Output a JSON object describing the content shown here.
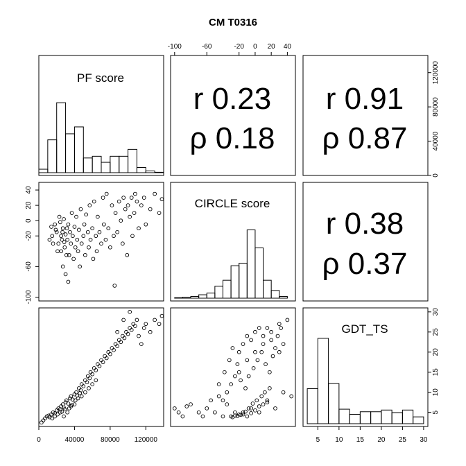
{
  "chart_data": {
    "type": "scatter",
    "title": "CM T0316",
    "variables": [
      "PF score",
      "CIRCLE score",
      "GDT_TS"
    ],
    "axis_ticks": {
      "pf": [
        "0",
        "40000",
        "80000",
        "120000"
      ],
      "circle": [
        "-100",
        "-60",
        "-20",
        "0",
        "20",
        "40"
      ],
      "gdt": [
        "5",
        "10",
        "15",
        "20",
        "25",
        "30"
      ]
    },
    "axis_ranges": {
      "pf": [
        0,
        140000
      ],
      "circle": [
        -105,
        50
      ],
      "gdt": [
        1.5,
        31
      ]
    },
    "correlations": [
      {
        "pair": "PF score vs CIRCLE score",
        "r_text": "r 0.23",
        "rho_text": "ρ 0.18"
      },
      {
        "pair": "PF score vs GDT_TS",
        "r_text": "r 0.91",
        "rho_text": "ρ 0.87"
      },
      {
        "pair": "CIRCLE score vs GDT_TS",
        "r_text": "r 0.38",
        "rho_text": "ρ 0.37"
      }
    ],
    "histograms": {
      "pf": {
        "breaks": [
          0,
          10000,
          20000,
          30000,
          40000,
          50000,
          60000,
          70000,
          80000,
          90000,
          100000,
          110000,
          120000,
          130000,
          140000
        ],
        "relative_heights": [
          0.04,
          0.38,
          0.81,
          0.45,
          0.53,
          0.17,
          0.19,
          0.12,
          0.19,
          0.19,
          0.27,
          0.06,
          0.02,
          0.005
        ]
      },
      "circle": {
        "breaks": [
          -100,
          -90,
          -80,
          -70,
          -60,
          -50,
          -40,
          -30,
          -20,
          -10,
          0,
          10,
          20,
          30,
          40
        ],
        "relative_heights": [
          0.006,
          0.012,
          0.02,
          0.04,
          0.06,
          0.14,
          0.21,
          0.38,
          0.41,
          0.8,
          0.59,
          0.21,
          0.09,
          0.02
        ]
      },
      "gdt": {
        "breaks": [
          2.5,
          5,
          7.5,
          10,
          12.5,
          15,
          17.5,
          20,
          22.5,
          25,
          27.5,
          30
        ],
        "relative_heights": [
          0.41,
          1.0,
          0.47,
          0.17,
          0.11,
          0.14,
          0.14,
          0.16,
          0.13,
          0.16,
          0.08
        ]
      }
    },
    "scatter_points": {
      "pf_vs_circle": [
        [
          18000,
          -5
        ],
        [
          20000,
          -15
        ],
        [
          22000,
          -30
        ],
        [
          23000,
          5
        ],
        [
          25000,
          -20
        ],
        [
          25000,
          -40
        ],
        [
          26000,
          -25
        ],
        [
          27000,
          -60
        ],
        [
          27000,
          -10
        ],
        [
          28000,
          2
        ],
        [
          29000,
          -35
        ],
        [
          30000,
          -18
        ],
        [
          30000,
          -70
        ],
        [
          31000,
          -45
        ],
        [
          32000,
          -25
        ],
        [
          33000,
          -5
        ],
        [
          33000,
          -80
        ],
        [
          35000,
          -15
        ],
        [
          36000,
          -30
        ],
        [
          37000,
          10
        ],
        [
          38000,
          -20
        ],
        [
          39000,
          -50
        ],
        [
          40000,
          -8
        ],
        [
          41000,
          -35
        ],
        [
          42000,
          5
        ],
        [
          43000,
          -25
        ],
        [
          44000,
          -40
        ],
        [
          45000,
          -12
        ],
        [
          46000,
          -60
        ],
        [
          47000,
          15
        ],
        [
          48000,
          -30
        ],
        [
          50000,
          -20
        ],
        [
          51000,
          -5
        ],
        [
          52000,
          -45
        ],
        [
          53000,
          8
        ],
        [
          55000,
          -15
        ],
        [
          56000,
          -35
        ],
        [
          57000,
          20
        ],
        [
          58000,
          -25
        ],
        [
          60000,
          -10
        ],
        [
          61000,
          -50
        ],
        [
          62000,
          25
        ],
        [
          64000,
          -20
        ],
        [
          65000,
          -40
        ],
        [
          66000,
          5
        ],
        [
          68000,
          -15
        ],
        [
          70000,
          -30
        ],
        [
          72000,
          30
        ],
        [
          73000,
          -5
        ],
        [
          75000,
          -25
        ],
        [
          76000,
          35
        ],
        [
          78000,
          -10
        ],
        [
          80000,
          -35
        ],
        [
          82000,
          20
        ],
        [
          84000,
          -20
        ],
        [
          85000,
          -85
        ],
        [
          86000,
          10
        ],
        [
          88000,
          -15
        ],
        [
          90000,
          25
        ],
        [
          92000,
          0
        ],
        [
          94000,
          -30
        ],
        [
          95000,
          30
        ],
        [
          97000,
          15
        ],
        [
          99000,
          -45
        ],
        [
          100000,
          20
        ],
        [
          102000,
          5
        ],
        [
          104000,
          30
        ],
        [
          105000,
          -20
        ],
        [
          107000,
          10
        ],
        [
          108000,
          35
        ],
        [
          110000,
          25
        ],
        [
          112000,
          -10
        ],
        [
          115000,
          20
        ],
        [
          118000,
          30
        ],
        [
          120000,
          -5
        ],
        [
          125000,
          15
        ],
        [
          130000,
          35
        ],
        [
          135000,
          10
        ],
        [
          138000,
          28
        ],
        [
          15000,
          -20
        ],
        [
          14000,
          -8
        ],
        [
          12000,
          -25
        ],
        [
          16000,
          -30
        ],
        [
          19000,
          -12
        ],
        [
          21000,
          -40
        ],
        [
          24000,
          -2
        ],
        [
          26500,
          -15
        ],
        [
          28500,
          -28
        ],
        [
          31500,
          -10
        ],
        [
          34000,
          -45
        ]
      ],
      "pf_vs_gdt": [
        [
          3000,
          2.5
        ],
        [
          5000,
          3
        ],
        [
          7000,
          3.5
        ],
        [
          9000,
          4
        ],
        [
          11000,
          4.2
        ],
        [
          12000,
          3.8
        ],
        [
          14000,
          4.5
        ],
        [
          16000,
          5
        ],
        [
          18000,
          4.8
        ],
        [
          20000,
          5.5
        ],
        [
          22000,
          6
        ],
        [
          24000,
          5.8
        ],
        [
          25000,
          6.5
        ],
        [
          27000,
          7
        ],
        [
          28000,
          6.2
        ],
        [
          30000,
          7.5
        ],
        [
          31000,
          8
        ],
        [
          33000,
          7.2
        ],
        [
          35000,
          8.5
        ],
        [
          36000,
          9
        ],
        [
          38000,
          8.2
        ],
        [
          40000,
          9.5
        ],
        [
          42000,
          10
        ],
        [
          43000,
          9.2
        ],
        [
          45000,
          11
        ],
        [
          47000,
          10.5
        ],
        [
          48000,
          12
        ],
        [
          50000,
          11.5
        ],
        [
          52000,
          13
        ],
        [
          54000,
          12.5
        ],
        [
          55000,
          14
        ],
        [
          57000,
          13.5
        ],
        [
          58000,
          15
        ],
        [
          60000,
          14.5
        ],
        [
          62000,
          16
        ],
        [
          64000,
          15.5
        ],
        [
          66000,
          17
        ],
        [
          68000,
          16.5
        ],
        [
          70000,
          18
        ],
        [
          72000,
          17.5
        ],
        [
          74000,
          19
        ],
        [
          76000,
          18.5
        ],
        [
          78000,
          20
        ],
        [
          80000,
          19.5
        ],
        [
          82000,
          21
        ],
        [
          84000,
          20.5
        ],
        [
          86000,
          22
        ],
        [
          88000,
          21.5
        ],
        [
          90000,
          23
        ],
        [
          92000,
          22.5
        ],
        [
          94000,
          24
        ],
        [
          96000,
          23.5
        ],
        [
          98000,
          25
        ],
        [
          100000,
          24.5
        ],
        [
          102000,
          26
        ],
        [
          104000,
          25.5
        ],
        [
          106000,
          27
        ],
        [
          108000,
          26.5
        ],
        [
          110000,
          28
        ],
        [
          112000,
          24
        ],
        [
          115000,
          22
        ],
        [
          118000,
          26
        ],
        [
          120000,
          27
        ],
        [
          125000,
          25
        ],
        [
          130000,
          28
        ],
        [
          135000,
          27
        ],
        [
          138000,
          29
        ],
        [
          102000,
          30
        ],
        [
          95000,
          28
        ],
        [
          88000,
          25
        ],
        [
          28000,
          4
        ],
        [
          32000,
          5
        ],
        [
          36000,
          6.5
        ],
        [
          40000,
          7
        ],
        [
          44000,
          8.5
        ],
        [
          48000,
          9
        ],
        [
          52000,
          10
        ],
        [
          56000,
          11
        ],
        [
          60000,
          12
        ],
        [
          64000,
          13
        ],
        [
          15000,
          3.5
        ],
        [
          18000,
          4
        ],
        [
          21000,
          4.5
        ],
        [
          24000,
          5
        ],
        [
          26000,
          5.2
        ],
        [
          29000,
          5.8
        ],
        [
          34000,
          6
        ],
        [
          37000,
          6.8
        ],
        [
          41000,
          8
        ],
        [
          46000,
          9.8
        ]
      ],
      "circle_vs_gdt": [
        [
          -100,
          6
        ],
        [
          -95,
          5
        ],
        [
          -90,
          4
        ],
        [
          -85,
          6.5
        ],
        [
          -80,
          7
        ],
        [
          -70,
          5
        ],
        [
          -65,
          4
        ],
        [
          -60,
          6
        ],
        [
          -55,
          8
        ],
        [
          -50,
          5
        ],
        [
          -45,
          9
        ],
        [
          -40,
          4
        ],
        [
          -35,
          7
        ],
        [
          -30,
          12
        ],
        [
          -25,
          5
        ],
        [
          -20,
          15
        ],
        [
          -15,
          4.5
        ],
        [
          -10,
          18
        ],
        [
          -5,
          6
        ],
        [
          0,
          20
        ],
        [
          5,
          5
        ],
        [
          10,
          22
        ],
        [
          15,
          8
        ],
        [
          20,
          25
        ],
        [
          25,
          6
        ],
        [
          30,
          27
        ],
        [
          35,
          10
        ],
        [
          40,
          28
        ],
        [
          45,
          9
        ],
        [
          -30,
          4
        ],
        [
          -25,
          4.2
        ],
        [
          -20,
          4.5
        ],
        [
          -15,
          5
        ],
        [
          -10,
          4
        ],
        [
          -5,
          4.8
        ],
        [
          0,
          5.5
        ],
        [
          5,
          6.5
        ],
        [
          10,
          7
        ],
        [
          15,
          7.5
        ],
        [
          -28,
          3.8
        ],
        [
          -22,
          4.1
        ],
        [
          -18,
          4.4
        ],
        [
          -12,
          5.2
        ],
        [
          -8,
          6
        ],
        [
          -3,
          7.2
        ],
        [
          2,
          8
        ],
        [
          8,
          9
        ],
        [
          12,
          10
        ],
        [
          18,
          11
        ],
        [
          -40,
          8
        ],
        [
          -35,
          10
        ],
        [
          -25,
          14
        ],
        [
          -20,
          20
        ],
        [
          -15,
          22
        ],
        [
          -10,
          24
        ],
        [
          -5,
          23
        ],
        [
          0,
          25
        ],
        [
          5,
          26
        ],
        [
          10,
          24
        ],
        [
          15,
          26
        ],
        [
          20,
          23
        ],
        [
          25,
          21
        ],
        [
          30,
          20
        ],
        [
          35,
          22
        ],
        [
          -45,
          12
        ],
        [
          -38,
          15
        ],
        [
          -32,
          18
        ],
        [
          -28,
          21
        ],
        [
          -22,
          17
        ],
        [
          -18,
          13
        ],
        [
          -12,
          11
        ],
        [
          -8,
          14
        ],
        [
          -2,
          16
        ],
        [
          3,
          18
        ],
        [
          8,
          20
        ],
        [
          13,
          17
        ],
        [
          18,
          15
        ],
        [
          22,
          19
        ],
        [
          28,
          24
        ],
        [
          32,
          26
        ]
      ]
    }
  }
}
